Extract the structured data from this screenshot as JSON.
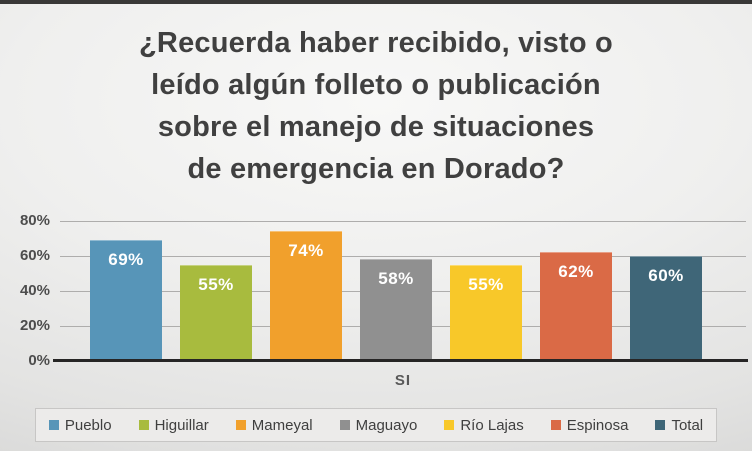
{
  "title": {
    "lines": [
      "¿Recuerda haber recibido, visto o",
      "leído algún folleto o publicación",
      "sobre el manejo de situaciones",
      "de emergencia en Dorado?"
    ]
  },
  "chart_data": {
    "type": "bar",
    "category": "SI",
    "xlabel": "SI",
    "series": [
      {
        "name": "Pueblo",
        "value": 69,
        "label": "69%",
        "color": "#5795B8"
      },
      {
        "name": "Higuillar",
        "value": 55,
        "label": "55%",
        "color": "#A8BB3E"
      },
      {
        "name": "Mameyal",
        "value": 74,
        "label": "74%",
        "color": "#F1A02C"
      },
      {
        "name": "Maguayo",
        "value": 58,
        "label": "58%",
        "color": "#909090"
      },
      {
        "name": "Río Lajas",
        "value": 55,
        "label": "55%",
        "color": "#F8C829"
      },
      {
        "name": "Espinosa",
        "value": 62,
        "label": "62%",
        "color": "#DA6A46"
      },
      {
        "name": "Total",
        "value": 60,
        "label": "60%",
        "color": "#3F6678"
      }
    ],
    "y_axis": {
      "min": 0,
      "max": 80,
      "step": 20,
      "ticks": [
        "0%",
        "20%",
        "40%",
        "60%",
        "80%"
      ]
    },
    "grid": true,
    "legend_position": "bottom",
    "colors": {
      "title_text": "#404040",
      "axis_line": "#262525",
      "gridline": "#aeadac",
      "tick_text": "#4d4d4d",
      "bar_label_text": "#ffffff",
      "legend_bg": "#ecebea"
    }
  }
}
